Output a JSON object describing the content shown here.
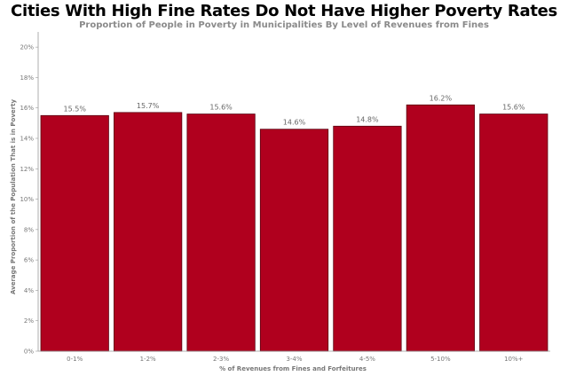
{
  "chart_data": {
    "type": "bar",
    "title": "Cities With High Fine Rates Do Not Have Higher Poverty Rates",
    "subtitle": "Proportion of People in Poverty in Municipalities By Level of Revenues from Fines",
    "xlabel": "% of Revenues from Fines and Forfeitures",
    "ylabel": "Average Proportion of the Population That is in Poverty",
    "categories": [
      "0-1%",
      "1-2%",
      "2-3%",
      "3-4%",
      "4-5%",
      "5-10%",
      "10%+"
    ],
    "values": [
      15.5,
      15.7,
      15.6,
      14.6,
      14.8,
      16.2,
      15.6
    ],
    "data_labels": [
      "15.5%",
      "15.7%",
      "15.6%",
      "14.6%",
      "14.8%",
      "16.2%",
      "15.6%"
    ],
    "ylim": [
      0,
      21
    ],
    "yticks": [
      0,
      2,
      4,
      6,
      8,
      10,
      12,
      14,
      16,
      18,
      20
    ],
    "ytick_labels": [
      "0%",
      "2%",
      "4%",
      "6%",
      "8%",
      "10%",
      "12%",
      "14%",
      "16%",
      "18%",
      "20%"
    ],
    "grid": false,
    "bar_color": "#b0001e",
    "bar_border_color": "#5a0010",
    "axis_color": "#999999"
  }
}
